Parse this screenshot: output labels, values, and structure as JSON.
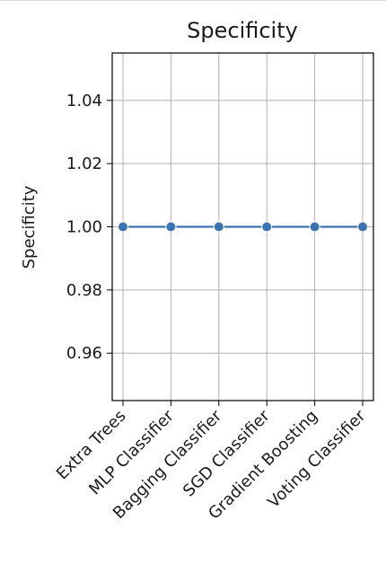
{
  "chart_data": {
    "type": "line",
    "title": "Specificity",
    "xlabel": "",
    "ylabel": "Specificity",
    "categories": [
      "Extra Trees",
      "MLP Classifier",
      "Bagging Classifier",
      "SGD Classifier",
      "Gradient Boosting",
      "Voting Classifier"
    ],
    "series": [
      {
        "values": [
          1.0,
          1.0,
          1.0,
          1.0,
          1.0,
          1.0
        ]
      }
    ],
    "ylim": [
      0.945,
      1.055
    ],
    "yticks": [
      "0.96",
      "0.98",
      "1.00",
      "1.02",
      "1.04"
    ],
    "grid": true,
    "marker": "circle",
    "colors": {
      "series": "#3b73b0",
      "grid": "#b0b0b0",
      "axis": "#000000"
    }
  }
}
